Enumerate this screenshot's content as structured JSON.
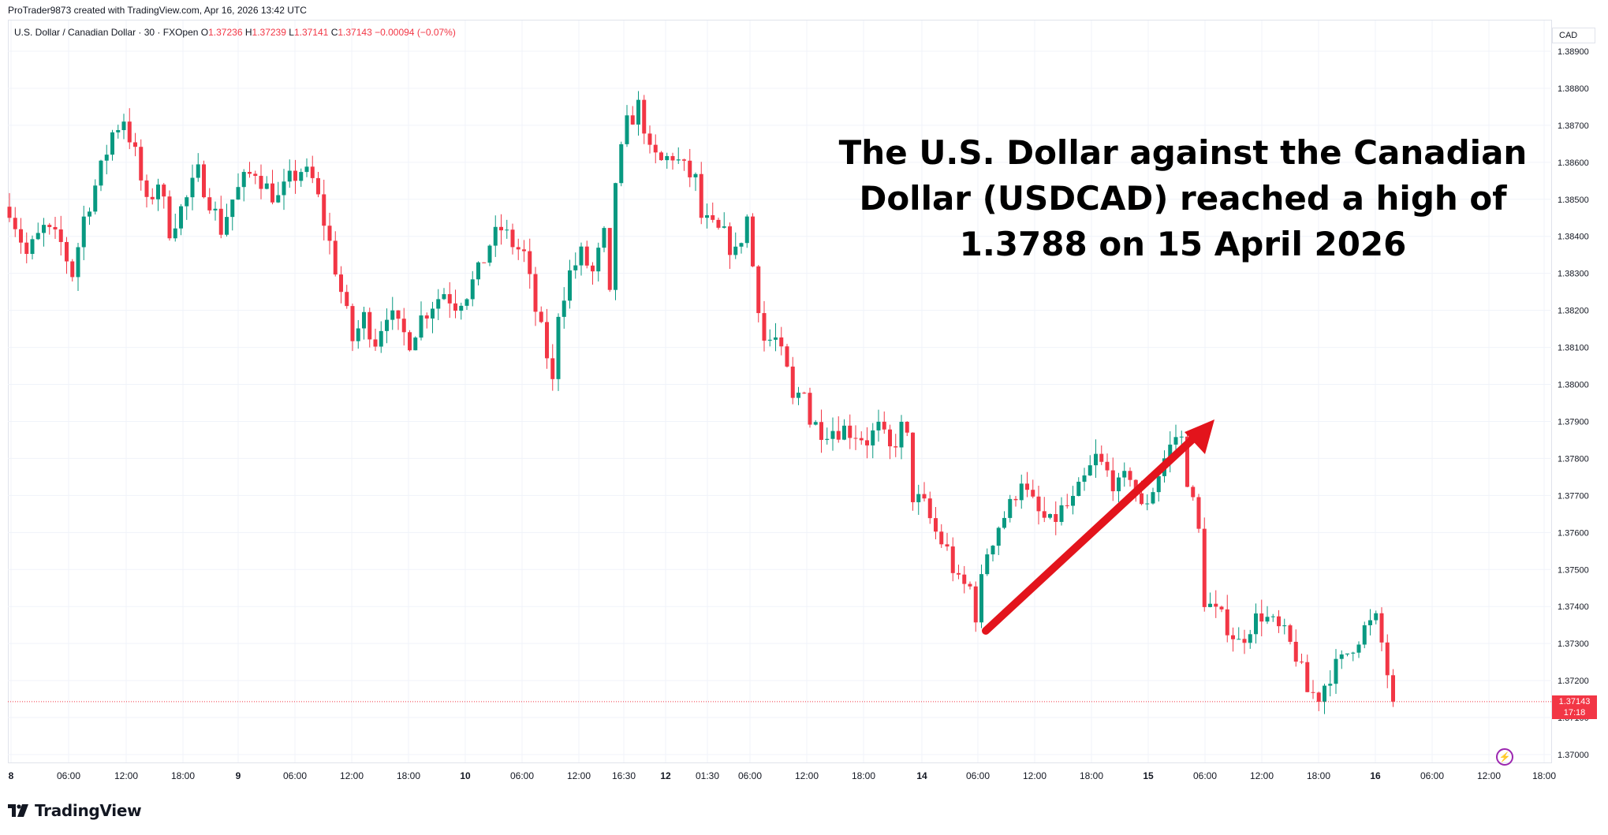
{
  "attribution": "ProTrader9873 created with TradingView.com, Apr 16, 2026 13:42 UTC",
  "legend": {
    "symbol": "U.S. Dollar / Canadian Dollar · 30 · FXOpen",
    "o_label": "O",
    "o": "1.37236",
    "h_label": "H",
    "h": "1.37239",
    "l_label": "L",
    "l": "1.37141",
    "c_label": "C",
    "c": "1.37143",
    "change": "−0.00094 (−0.07%)"
  },
  "currency": "CAD",
  "headline": "The U.S. Dollar against the Canadian Dollar (USDCAD) reached a high of 1.3788 on 15 April 2026",
  "last_price": {
    "price": "1.37143",
    "countdown": "17:18",
    "color": "#f23645"
  },
  "brand": "TradingView",
  "colors": {
    "up": "#089981",
    "down": "#f23645",
    "arrow": "#e3141c",
    "grid": "#f0f3fa"
  },
  "chart_data": {
    "type": "candlestick",
    "symbol": "USDCAD",
    "timeframe": "30",
    "ylim": [
      1.3695,
      1.3892
    ],
    "y_ticks": [
      "1.38900",
      "1.38800",
      "1.38700",
      "1.38600",
      "1.38500",
      "1.38400",
      "1.38300",
      "1.38200",
      "1.38100",
      "1.38000",
      "1.37900",
      "1.37800",
      "1.37700",
      "1.37600",
      "1.37500",
      "1.37400",
      "1.37300",
      "1.37200",
      "1.37100",
      "1.37000"
    ],
    "x_ticks": [
      "8",
      "06:00",
      "12:00",
      "18:00",
      "9",
      "06:00",
      "12:00",
      "18:00",
      "10",
      "06:00",
      "12:00",
      "16:30",
      "12",
      "01:30",
      "06:00",
      "12:00",
      "18:00",
      "14",
      "06:00",
      "12:00",
      "18:00",
      "15",
      "06:00",
      "12:00",
      "18:00",
      "16",
      "06:00",
      "12:00",
      "18:00"
    ],
    "price_path": [
      [
        0,
        1.3848
      ],
      [
        3,
        1.3835
      ],
      [
        6,
        1.3842
      ],
      [
        9,
        1.3838
      ],
      [
        11,
        1.383
      ],
      [
        13,
        1.3845
      ],
      [
        16,
        1.3858
      ],
      [
        18,
        1.3868
      ],
      [
        20,
        1.3872
      ],
      [
        22,
        1.3862
      ],
      [
        24,
        1.3848
      ],
      [
        26,
        1.3855
      ],
      [
        28,
        1.3842
      ],
      [
        31,
        1.385
      ],
      [
        33,
        1.3857
      ],
      [
        35,
        1.385
      ],
      [
        37,
        1.3842
      ],
      [
        39,
        1.385
      ],
      [
        41,
        1.3855
      ],
      [
        43,
        1.3858
      ],
      [
        45,
        1.3853
      ],
      [
        47,
        1.385
      ],
      [
        49,
        1.3855
      ],
      [
        51,
        1.3858
      ],
      [
        53,
        1.3855
      ],
      [
        54,
        1.385
      ],
      [
        56,
        1.3838
      ],
      [
        58,
        1.3825
      ],
      [
        60,
        1.3812
      ],
      [
        62,
        1.3818
      ],
      [
        64,
        1.3812
      ],
      [
        66,
        1.382
      ],
      [
        68,
        1.3815
      ],
      [
        70,
        1.3812
      ],
      [
        72,
        1.3818
      ],
      [
        74,
        1.3822
      ],
      [
        76,
        1.3825
      ],
      [
        78,
        1.3822
      ],
      [
        80,
        1.3825
      ],
      [
        82,
        1.383
      ],
      [
        84,
        1.3838
      ],
      [
        86,
        1.3842
      ],
      [
        88,
        1.3838
      ],
      [
        90,
        1.3835
      ],
      [
        92,
        1.382
      ],
      [
        94,
        1.3808
      ],
      [
        95,
        1.38
      ],
      [
        96,
        1.382
      ],
      [
        98,
        1.383
      ],
      [
        100,
        1.3835
      ],
      [
        102,
        1.383
      ],
      [
        104,
        1.384
      ],
      [
        105,
        1.3823
      ],
      [
        106,
        1.3855
      ],
      [
        108,
        1.387
      ],
      [
        110,
        1.3875
      ],
      [
        111,
        1.387
      ],
      [
        112,
        1.3862
      ],
      [
        114,
        1.386
      ],
      [
        116,
        1.3862
      ],
      [
        118,
        1.3858
      ],
      [
        120,
        1.3855
      ],
      [
        121,
        1.3845
      ],
      [
        123,
        1.3842
      ],
      [
        125,
        1.384
      ],
      [
        127,
        1.3835
      ],
      [
        129,
        1.3845
      ],
      [
        130,
        1.3832
      ],
      [
        132,
        1.3812
      ],
      [
        134,
        1.3812
      ],
      [
        136,
        1.3803
      ],
      [
        137,
        1.3795
      ],
      [
        139,
        1.38
      ],
      [
        140,
        1.379
      ],
      [
        142,
        1.3788
      ],
      [
        144,
        1.3788
      ],
      [
        146,
        1.3788
      ],
      [
        148,
        1.3787
      ],
      [
        150,
        1.3785
      ],
      [
        152,
        1.3788
      ],
      [
        154,
        1.3782
      ],
      [
        156,
        1.3788
      ],
      [
        157,
        1.3785
      ],
      [
        158,
        1.377
      ],
      [
        160,
        1.3767
      ],
      [
        162,
        1.376
      ],
      [
        164,
        1.3755
      ],
      [
        166,
        1.3746
      ],
      [
        168,
        1.3745
      ],
      [
        169,
        1.3738
      ],
      [
        171,
        1.3755
      ],
      [
        173,
        1.3762
      ],
      [
        175,
        1.3767
      ],
      [
        177,
        1.3775
      ],
      [
        178,
        1.377
      ],
      [
        180,
        1.3765
      ],
      [
        182,
        1.3762
      ],
      [
        184,
        1.3766
      ],
      [
        186,
        1.3768
      ],
      [
        188,
        1.3774
      ],
      [
        190,
        1.378
      ],
      [
        192,
        1.3776
      ],
      [
        194,
        1.3772
      ],
      [
        196,
        1.3776
      ],
      [
        198,
        1.3766
      ],
      [
        200,
        1.3772
      ],
      [
        202,
        1.378
      ],
      [
        204,
        1.3786
      ],
      [
        205,
        1.3785
      ],
      [
        206,
        1.3775
      ],
      [
        208,
        1.376
      ],
      [
        209,
        1.3742
      ],
      [
        211,
        1.3738
      ],
      [
        213,
        1.3735
      ],
      [
        215,
        1.373
      ],
      [
        217,
        1.3735
      ],
      [
        219,
        1.3738
      ],
      [
        221,
        1.3735
      ],
      [
        223,
        1.3732
      ],
      [
        225,
        1.3727
      ],
      [
        227,
        1.3717
      ],
      [
        229,
        1.3716
      ],
      [
        231,
        1.3722
      ],
      [
        233,
        1.3725
      ],
      [
        235,
        1.373
      ],
      [
        237,
        1.3734
      ],
      [
        239,
        1.3736
      ],
      [
        240,
        1.373
      ],
      [
        241,
        1.3722
      ],
      [
        242,
        1.37143
      ]
    ]
  }
}
